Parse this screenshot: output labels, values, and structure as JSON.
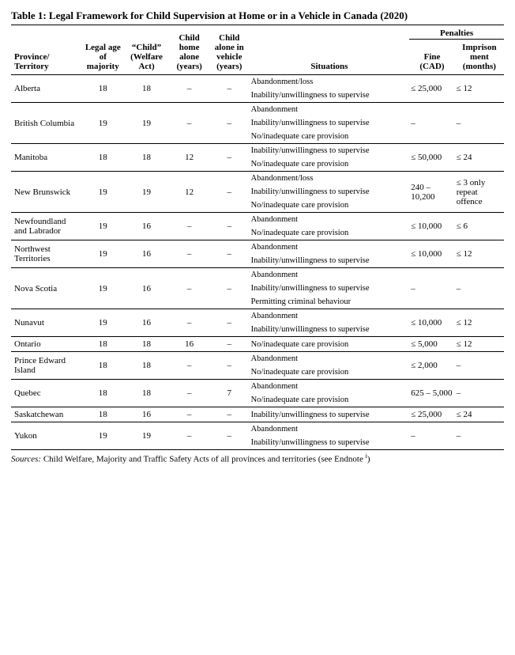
{
  "title": "Table 1: Legal Framework for Child Supervision at Home or in a Vehicle in Canada (2020)",
  "headers": {
    "province": "Province/ Territory",
    "legal_age": "Legal age of majority",
    "welfare": "“Child” (Welfare Act)",
    "home_alone": "Child home alone (years)",
    "vehicle_alone": "Child alone in vehicle (years)",
    "situations": "Situations",
    "penalties": "Penalties",
    "fine": "Fine (CAD)",
    "imprisonment": "Imprison ment (months)"
  },
  "dash": "–",
  "rows": [
    {
      "province": "Alberta",
      "legal_age": "18",
      "welfare": "18",
      "home": "–",
      "vehicle": "–",
      "situations": [
        "Abandonment/loss",
        "Inability/unwillingness to supervise"
      ],
      "fine": "≤ 25,000",
      "imp": "≤ 12"
    },
    {
      "province": "British Columbia",
      "legal_age": "19",
      "welfare": "19",
      "home": "–",
      "vehicle": "–",
      "situations": [
        "Abandonment",
        "Inability/unwillingness to supervise",
        "No/inadequate care provision"
      ],
      "fine": "–",
      "imp": "–"
    },
    {
      "province": "Manitoba",
      "legal_age": "18",
      "welfare": "18",
      "home": "12",
      "vehicle": "–",
      "situations": [
        "Inability/unwillingness to supervise",
        "No/inadequate care provision"
      ],
      "fine": "≤ 50,000",
      "imp": "≤ 24"
    },
    {
      "province": "New Brunswick",
      "legal_age": "19",
      "welfare": "19",
      "home": "12",
      "vehicle": "–",
      "situations": [
        "Abandonment/loss",
        "Inability/unwillingness to supervise",
        "No/inadequate care provision"
      ],
      "fine": "240 – 10,200",
      "imp": "≤ 3 only repeat offence"
    },
    {
      "province": "Newfoundland and Labrador",
      "legal_age": "19",
      "welfare": "16",
      "home": "–",
      "vehicle": "–",
      "situations": [
        "Abandonment",
        "No/inadequate care provision"
      ],
      "fine": "≤ 10,000",
      "imp": "≤ 6"
    },
    {
      "province": "Northwest Territories",
      "legal_age": "19",
      "welfare": "16",
      "home": "–",
      "vehicle": "–",
      "situations": [
        "Abandonment",
        "Inability/unwillingness to supervise"
      ],
      "fine": "≤ 10,000",
      "imp": "≤ 12"
    },
    {
      "province": "Nova Scotia",
      "legal_age": "19",
      "welfare": "16",
      "home": "–",
      "vehicle": "–",
      "situations": [
        "Abandonment",
        "Inability/unwillingness to supervise",
        "Permitting criminal behaviour"
      ],
      "fine": "–",
      "imp": "–"
    },
    {
      "province": "Nunavut",
      "legal_age": "19",
      "welfare": "16",
      "home": "–",
      "vehicle": "–",
      "situations": [
        "Abandonment",
        "Inability/unwillingness   to supervise"
      ],
      "fine": "≤ 10,000",
      "imp": "≤ 12"
    },
    {
      "province": "Ontario",
      "legal_age": "18",
      "welfare": "18",
      "home": "16",
      "vehicle": "–",
      "situations": [
        "No/inadequate care provision"
      ],
      "fine": "≤ 5,000",
      "imp": "≤ 12"
    },
    {
      "province": "Prince Edward Island",
      "legal_age": "18",
      "welfare": "18",
      "home": "–",
      "vehicle": "–",
      "situations": [
        "Abandonment",
        "No/inadequate care provision"
      ],
      "fine": "≤ 2,000",
      "imp": "–"
    },
    {
      "province": "Quebec",
      "legal_age": "18",
      "welfare": "18",
      "home": "–",
      "vehicle": "7",
      "situations": [
        "Abandonment",
        "No/inadequate care provision"
      ],
      "fine": "625 – 5,000",
      "imp": "–"
    },
    {
      "province": "Saskatchewan",
      "legal_age": "18",
      "welfare": "16",
      "home": "–",
      "vehicle": "–",
      "situations": [
        "Inability/unwillingness to supervise"
      ],
      "fine": "≤ 25,000",
      "imp": "≤ 24"
    },
    {
      "province": "Yukon",
      "legal_age": "19",
      "welfare": "19",
      "home": "–",
      "vehicle": "–",
      "situations": [
        "Abandonment",
        "Inability/unwillingness to supervise"
      ],
      "fine": "–",
      "imp": "–"
    }
  ],
  "sources": {
    "label": "Sources:",
    "text": " Child Welfare, Majority and Traffic Safety Acts of all provinces and territories (see Endnote ",
    "sup": "i",
    "after": ")"
  }
}
